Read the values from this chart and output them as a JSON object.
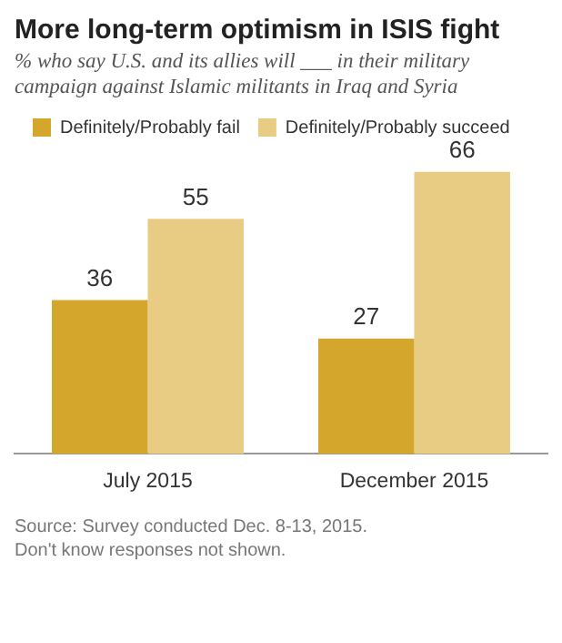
{
  "chart_data": {
    "type": "bar",
    "title": "More long-term optimism in ISIS fight",
    "subtitle": "% who say U.S. and its allies will ___ in their military campaign against Islamic militants in Iraq and Syria",
    "categories": [
      "July 2015",
      "December 2015"
    ],
    "series": [
      {
        "name": "Definitely/Probably fail",
        "color": "#d4a72c",
        "values": [
          36,
          27
        ]
      },
      {
        "name": "Definitely/Probably succeed",
        "color": "#e8cc84",
        "values": [
          55,
          66
        ]
      }
    ],
    "data_labels": true,
    "legend": "top left",
    "grid": false,
    "annotations": [
      "Source: Survey conducted Dec. 8-13, 2015.",
      "Don't know responses not shown."
    ]
  }
}
